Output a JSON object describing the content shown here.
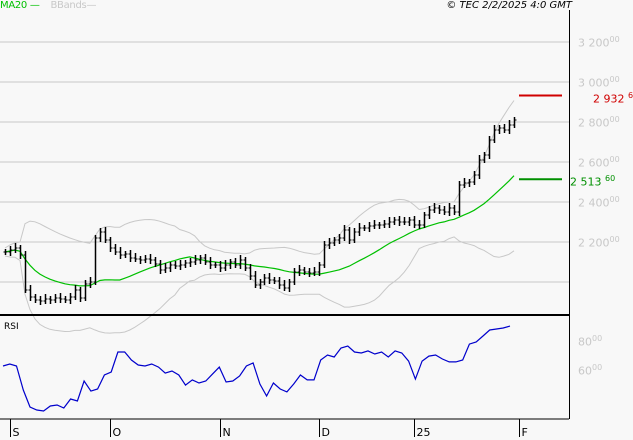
{
  "legend": {
    "ma_label": "MA20",
    "bbands_label": "BBands"
  },
  "copyright": "© TEC 2/2/2025 4:0 GMT",
  "rsi_label": "RSI",
  "colors": {
    "price_bars": "#000000",
    "ma": "#00c000",
    "bbands": "#c8c8c8",
    "rsi": "#0000cc",
    "last_upper": "#d00000",
    "last_ma": "#009000",
    "grid": "#c8c8c8"
  },
  "chart_data": [
    {
      "type": "ohlc-bar",
      "ylim": [
        1850,
        3300
      ],
      "yticks": [
        {
          "value": 3200,
          "int": "3 200",
          "dec": "00"
        },
        {
          "value": 3000,
          "int": "3 000",
          "dec": "00"
        },
        {
          "value": 2800,
          "int": "2 800",
          "dec": "00"
        },
        {
          "value": 2600,
          "int": "2 600",
          "dec": "00"
        },
        {
          "value": 2400,
          "int": "2 400",
          "dec": "00"
        },
        {
          "value": 2200,
          "int": "2 200",
          "dec": "00"
        },
        {
          "value": 2000,
          "int": "",
          "dec": ""
        }
      ],
      "xticks": [
        {
          "label": "S",
          "index": 2
        },
        {
          "label": "O",
          "index": 22
        },
        {
          "label": "N",
          "index": 44
        },
        {
          "label": "D",
          "index": 64
        },
        {
          "label": "25",
          "index": 83
        },
        {
          "label": "F",
          "index": 104
        }
      ],
      "close": [
        2150,
        2160,
        2170,
        2135,
        1960,
        1925,
        1910,
        1905,
        1915,
        1910,
        1920,
        1915,
        1910,
        1925,
        1960,
        1920,
        1990,
        2000,
        2220,
        2250,
        2210,
        2170,
        2150,
        2135,
        2140,
        2120,
        2115,
        2110,
        2115,
        2110,
        2090,
        2060,
        2070,
        2085,
        2080,
        2085,
        2095,
        2100,
        2110,
        2120,
        2100,
        2085,
        2085,
        2070,
        2085,
        2100,
        2085,
        2110,
        2070,
        2030,
        1985,
        2000,
        2020,
        2010,
        2005,
        1985,
        1970,
        2000,
        2050,
        2060,
        2050,
        2045,
        2050,
        2085,
        2185,
        2195,
        2210,
        2220,
        2260,
        2210,
        2250,
        2270,
        2270,
        2280,
        2285,
        2285,
        2290,
        2300,
        2310,
        2300,
        2300,
        2310,
        2285,
        2285,
        2335,
        2360,
        2370,
        2360,
        2350,
        2370,
        2350,
        2485,
        2495,
        2500,
        2535,
        2610,
        2635,
        2710,
        2760,
        2770,
        2760,
        2785,
        2810
      ],
      "indicators": {
        "ma_period": 20,
        "bbands_period": 20
      },
      "last_values": {
        "upper_band": {
          "int": "2 932",
          "dec": "6"
        },
        "ma20": {
          "int": "2 513",
          "dec": "60"
        },
        "upper_band_value": 2932.6,
        "ma20_value": 2513.6
      }
    },
    {
      "type": "line",
      "name": "RSI",
      "ylim": [
        25,
        95
      ],
      "yticks": [
        {
          "value": 80,
          "int": "80",
          "dec": "00"
        },
        {
          "value": 60,
          "int": "60",
          "dec": "00"
        }
      ],
      "values": [
        62.7,
        64.1,
        62.7,
        46.3,
        34.7,
        32.7,
        32,
        35.4,
        36.1,
        34,
        40.2,
        38.8,
        52.5,
        45.6,
        47,
        56.6,
        58.6,
        72.3,
        72.3,
        66.8,
        63.4,
        62.7,
        64.1,
        62,
        57.9,
        59.3,
        56.6,
        49.7,
        53.2,
        51.1,
        52.5,
        57.3,
        62,
        51.8,
        52.5,
        55.9,
        62.7,
        64.8,
        50.4,
        42.2,
        51.1,
        47,
        45,
        50.4,
        56.6,
        53.2,
        53.2,
        66.8,
        70.2,
        68.9,
        75,
        76.4,
        72.3,
        71.6,
        73,
        70.9,
        72.3,
        68.9,
        73,
        71.6,
        66.1,
        53.8,
        66.1,
        69.5,
        70.2,
        67.5,
        65.5,
        65.5,
        66.8,
        77.7,
        79.1,
        83.2,
        87.3,
        88,
        88.7,
        90
      ]
    }
  ]
}
